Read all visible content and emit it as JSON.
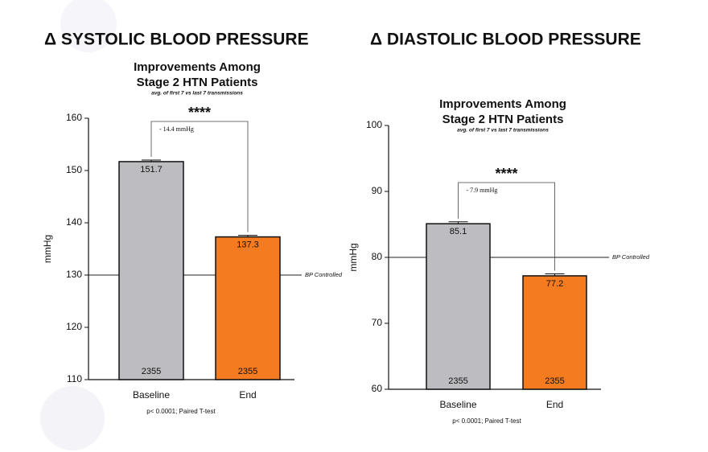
{
  "chart_data": [
    {
      "type": "bar",
      "header": "Δ SYSTOLIC BLOOD PRESSURE",
      "title": [
        "Improvements Among",
        "Stage 2 HTN Patients"
      ],
      "subtitle": "avg. of first 7 vs last 7 transmissions",
      "ylabel": "mmHg",
      "categories": [
        "Baseline",
        "End"
      ],
      "values": [
        151.7,
        137.3
      ],
      "errors": [
        0.3,
        0.3
      ],
      "n": [
        2355,
        2355
      ],
      "colors": [
        "#bdbcc1",
        "#f47b20"
      ],
      "ylim": [
        110,
        160
      ],
      "yticks": [
        110,
        120,
        130,
        140,
        150,
        160
      ],
      "reference": {
        "value": 130,
        "label": "BP Controlled"
      },
      "significance": "****",
      "difference": "- 14.4 mmHg",
      "footnote": "p< 0.0001; Paired T-test"
    },
    {
      "type": "bar",
      "header": "Δ DIASTOLIC BLOOD PRESSURE",
      "title": [
        "Improvements Among",
        "Stage 2 HTN Patients"
      ],
      "subtitle": "avg. of first 7 vs last 7 transmissions",
      "ylabel": "mmHg",
      "categories": [
        "Baseline",
        "End"
      ],
      "values": [
        85.1,
        77.2
      ],
      "errors": [
        0.3,
        0.3
      ],
      "n": [
        2355,
        2355
      ],
      "colors": [
        "#bdbcc1",
        "#f47b20"
      ],
      "ylim": [
        60,
        100
      ],
      "yticks": [
        60,
        70,
        80,
        90,
        100
      ],
      "reference": {
        "value": 80,
        "label": "BP Controlled"
      },
      "significance": "****",
      "difference": "- 7.9 mmHg",
      "footnote": "p< 0.0001; Paired T-test"
    }
  ]
}
